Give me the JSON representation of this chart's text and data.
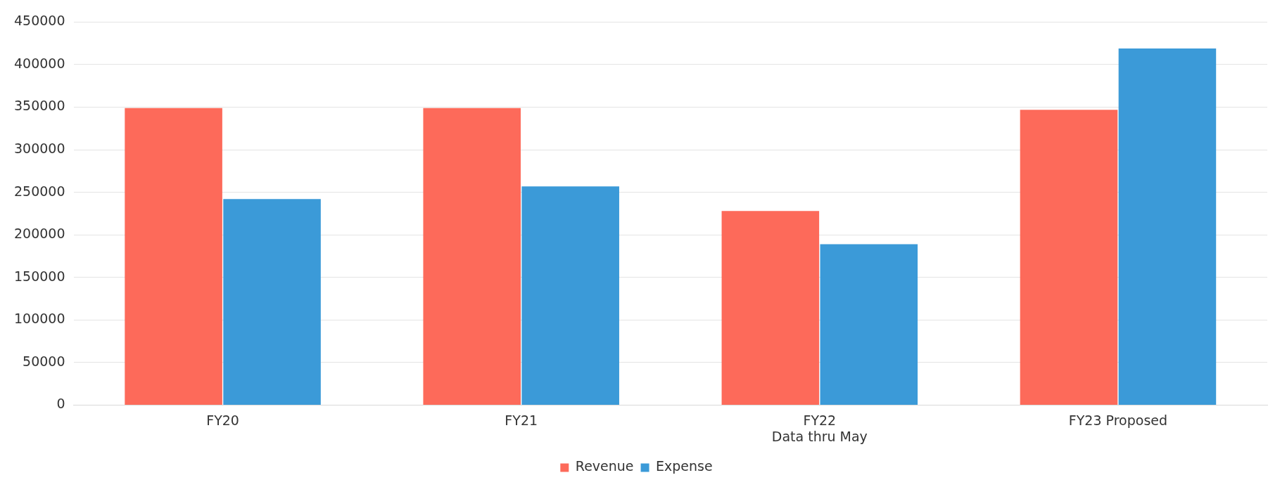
{
  "chart_data": {
    "type": "bar",
    "categories": [
      "FY20",
      "FY21",
      "FY22\nData thru May",
      "FY23 Proposed"
    ],
    "series": [
      {
        "name": "Revenue",
        "color": "#fd6a5a",
        "values": [
          349000,
          349000,
          228000,
          347000
        ]
      },
      {
        "name": "Expense",
        "color": "#3b9ad8",
        "values": [
          242000,
          257000,
          189000,
          419000
        ]
      }
    ],
    "ylim": [
      0,
      450000
    ],
    "yticks": [
      0,
      50000,
      100000,
      150000,
      200000,
      250000,
      300000,
      350000,
      400000,
      450000
    ],
    "grid": "y",
    "legend": "bottom"
  }
}
